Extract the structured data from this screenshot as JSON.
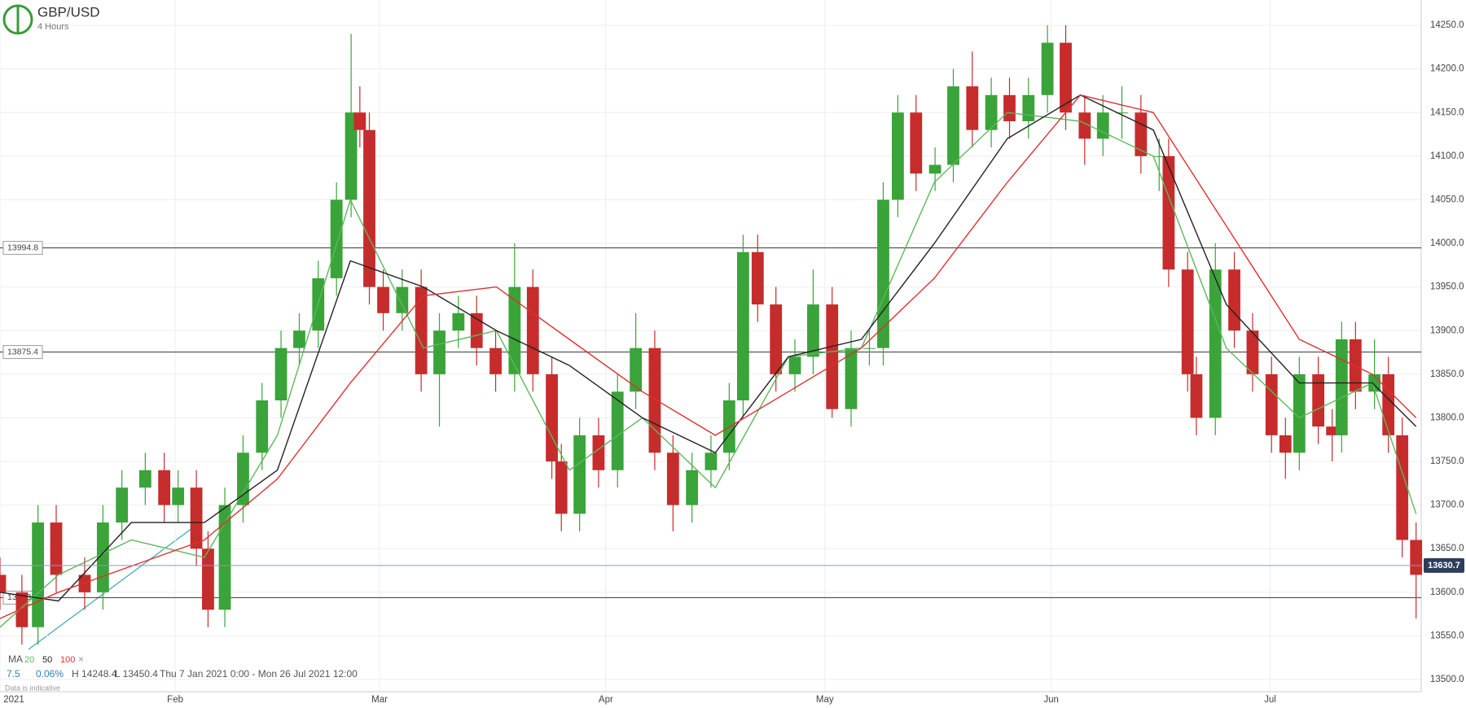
{
  "chart_data": {
    "type": "candlestick",
    "title": "GBP/USD",
    "subtitle": "4 Hours",
    "xlim": [
      7,
      201.7
    ],
    "ylim": [
      13486,
      14279
    ],
    "xticks": [
      {
        "value": 7,
        "label": "2021"
      },
      {
        "value": 31,
        "label": "Feb"
      },
      {
        "value": 59,
        "label": "Mar"
      },
      {
        "value": 90,
        "label": "Apr"
      },
      {
        "value": 120,
        "label": "May"
      },
      {
        "value": 151,
        "label": "Jun"
      },
      {
        "value": 181,
        "label": "Jul"
      }
    ],
    "yticks": [
      {
        "value": 13500,
        "label": "13500.0"
      },
      {
        "value": 13550,
        "label": "13550.0"
      },
      {
        "value": 13600,
        "label": "13600.0"
      },
      {
        "value": 13650,
        "label": "13650.0"
      },
      {
        "value": 13700,
        "label": "13700.0"
      },
      {
        "value": 13750,
        "label": "13750.0"
      },
      {
        "value": 13800,
        "label": "13800.0"
      },
      {
        "value": 13850,
        "label": "13850.0"
      },
      {
        "value": 13900,
        "label": "13900.0"
      },
      {
        "value": 13950,
        "label": "13950.0"
      },
      {
        "value": 14000,
        "label": "14000.0"
      },
      {
        "value": 14050,
        "label": "14050.0"
      },
      {
        "value": 14100,
        "label": "14100.0"
      },
      {
        "value": 14150,
        "label": "14150.0"
      },
      {
        "value": 14200,
        "label": "14200.0"
      },
      {
        "value": 14250,
        "label": "14250.0"
      }
    ],
    "grid": true,
    "up_color": "#3aa33a",
    "down_color": "#c62c2c",
    "x": [
      7.0,
      10.0,
      12.2,
      14.7,
      18.6,
      21.1,
      23.7,
      26.9,
      29.5,
      31.4,
      33.9,
      35.5,
      37.8,
      40.3,
      42.9,
      45.5,
      48.0,
      50.6,
      53.1,
      55.1,
      56.3,
      57.6,
      59.5,
      62.1,
      64.7,
      67.2,
      69.8,
      72.3,
      74.9,
      77.5,
      80.0,
      82.6,
      83.9,
      86.4,
      89.0,
      91.6,
      94.1,
      96.7,
      99.2,
      101.8,
      104.4,
      106.9,
      108.8,
      110.8,
      113.3,
      115.9,
      118.4,
      121.0,
      123.6,
      126.1,
      128.0,
      130.0,
      132.5,
      135.1,
      137.6,
      140.2,
      142.8,
      145.3,
      147.9,
      150.5,
      153.0,
      155.6,
      158.1,
      160.7,
      163.3,
      165.8,
      167.1,
      169.7,
      170.9,
      173.5,
      176.1,
      178.6,
      181.2,
      183.1,
      185.0,
      187.6,
      189.5,
      190.8,
      192.7,
      195.3,
      197.2,
      199.1,
      201.0
    ],
    "open": [
      13620,
      13600,
      13560,
      13680,
      13620,
      13600,
      13680,
      13720,
      13740,
      13700,
      13720,
      13650,
      13580,
      13700,
      13760,
      13820,
      13880,
      13900,
      13960,
      14050,
      14150,
      14130,
      13950,
      13920,
      13950,
      13850,
      13900,
      13920,
      13880,
      13850,
      13950,
      13850,
      13750,
      13690,
      13780,
      13740,
      13830,
      13880,
      13760,
      13700,
      13740,
      13760,
      13820,
      13990,
      13930,
      13850,
      13870,
      13930,
      13810,
      13880,
      13880,
      14050,
      14150,
      14080,
      14090,
      14180,
      14130,
      14170,
      14140,
      14170,
      14230,
      14150,
      14120,
      14150,
      14150,
      14100,
      14100,
      13970,
      13850,
      13800,
      13970,
      13900,
      13850,
      13780,
      13760,
      13850,
      13790,
      13780,
      13890,
      13830,
      13850,
      13780,
      13660
    ],
    "high": [
      13640,
      13620,
      13700,
      13700,
      13640,
      13700,
      13740,
      13760,
      13760,
      13740,
      13740,
      13670,
      13720,
      13780,
      13840,
      13900,
      13920,
      13980,
      14070,
      14240,
      14180,
      14150,
      13970,
      13970,
      13970,
      13920,
      13940,
      13940,
      13900,
      14000,
      13970,
      13870,
      13770,
      13800,
      13800,
      13850,
      13920,
      13900,
      13780,
      13760,
      13780,
      13840,
      14010,
      14010,
      13950,
      13890,
      13970,
      13950,
      13900,
      13900,
      14070,
      14170,
      14170,
      14110,
      14200,
      14220,
      14190,
      14190,
      14190,
      14250,
      14250,
      14170,
      14170,
      14180,
      14170,
      14120,
      14120,
      13990,
      13870,
      14000,
      13990,
      13920,
      13870,
      13800,
      13870,
      13870,
      13810,
      13910,
      13910,
      13890,
      13870,
      13800,
      13680
    ],
    "low": [
      13580,
      13540,
      13540,
      13600,
      13580,
      13580,
      13660,
      13700,
      13680,
      13680,
      13630,
      13560,
      13560,
      13680,
      13740,
      13800,
      13860,
      13880,
      13940,
      14030,
      14110,
      13930,
      13900,
      13900,
      13830,
      13790,
      13880,
      13860,
      13830,
      13830,
      13830,
      13730,
      13670,
      13670,
      13720,
      13720,
      13810,
      13740,
      13670,
      13680,
      13720,
      13740,
      13800,
      13910,
      13830,
      13830,
      13850,
      13800,
      13790,
      13860,
      13860,
      14030,
      14060,
      14060,
      14070,
      14110,
      14110,
      14120,
      14120,
      14150,
      14130,
      14090,
      14100,
      14120,
      14080,
      14060,
      13950,
      13830,
      13780,
      13780,
      13880,
      13830,
      13760,
      13730,
      13740,
      13770,
      13750,
      13760,
      13810,
      13810,
      13760,
      13640,
      13570
    ],
    "close": [
      13600,
      13560,
      13680,
      13620,
      13600,
      13680,
      13720,
      13740,
      13700,
      13720,
      13650,
      13580,
      13700,
      13760,
      13820,
      13880,
      13900,
      13960,
      14050,
      14150,
      14130,
      13950,
      13920,
      13950,
      13850,
      13900,
      13920,
      13880,
      13850,
      13950,
      13850,
      13750,
      13690,
      13780,
      13740,
      13830,
      13880,
      13760,
      13700,
      13740,
      13760,
      13820,
      13990,
      13930,
      13850,
      13870,
      13930,
      13810,
      13880,
      13880,
      14050,
      14150,
      14080,
      14090,
      14180,
      14130,
      14170,
      14140,
      14170,
      14230,
      14150,
      14120,
      14150,
      14150,
      14100,
      14100,
      13970,
      13850,
      13800,
      13970,
      13900,
      13850,
      13780,
      13760,
      13850,
      13790,
      13780,
      13890,
      13830,
      13850,
      13780,
      13660,
      13620
    ],
    "ma": {
      "label": "MA",
      "x": [
        7,
        15,
        25,
        35,
        45,
        55,
        65,
        75,
        85,
        95,
        105,
        115,
        125,
        135,
        145,
        155,
        165,
        175,
        185,
        195,
        201
      ],
      "series": [
        {
          "name": "20",
          "color": "#5cb85c",
          "values": [
            13560,
            13620,
            13660,
            13640,
            13780,
            14050,
            13880,
            13900,
            13740,
            13800,
            13720,
            13870,
            13880,
            14070,
            14150,
            14140,
            14100,
            13880,
            13800,
            13840,
            13690
          ]
        },
        {
          "name": "50",
          "color": "#222222",
          "values": [
            13600,
            13590,
            13680,
            13680,
            13740,
            13980,
            13950,
            13900,
            13860,
            13800,
            13760,
            13870,
            13890,
            14000,
            14120,
            14170,
            14130,
            13930,
            13840,
            13840,
            13790
          ]
        },
        {
          "name": "100",
          "color": "#e03030",
          "values": [
            13570,
            13600,
            13630,
            13660,
            13730,
            13840,
            13940,
            13950,
            13890,
            13830,
            13780,
            13830,
            13880,
            13960,
            14070,
            14170,
            14150,
            14020,
            13890,
            13850,
            13800
          ]
        }
      ]
    },
    "levels": [
      13994.8,
      13875.4,
      13593.9
    ],
    "current_price": 13630.7,
    "info": {
      "change": "7.5",
      "change_pct": "0.06%",
      "high": "H 14248.4",
      "low": "L 13450.4",
      "range": "Thu 7 Jan 2021 0:00 - Mon 26 Jul 2021 12:00",
      "note": "Data is indicative"
    }
  }
}
